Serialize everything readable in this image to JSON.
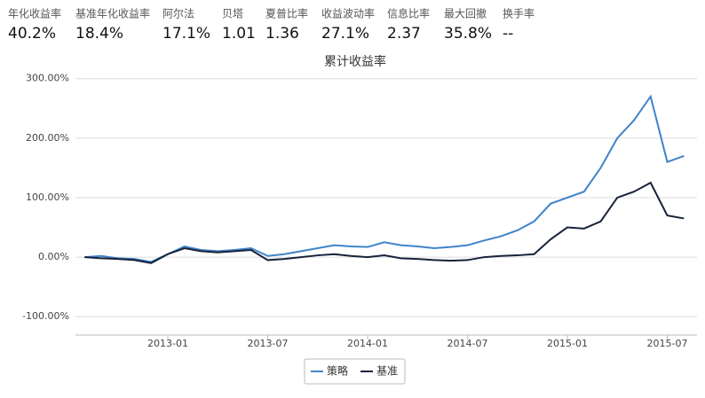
{
  "stats": [
    {
      "label": "年化收益率",
      "value": "40.2%"
    },
    {
      "label": "基准年化收益率",
      "value": "18.4%"
    },
    {
      "label": "阿尔法",
      "value": "17.1%"
    },
    {
      "label": "贝塔",
      "value": "1.01"
    },
    {
      "label": "夏普比率",
      "value": "1.36"
    },
    {
      "label": "收益波动率",
      "value": "27.1%"
    },
    {
      "label": "信息比率",
      "value": "2.37"
    },
    {
      "label": "最大回撤",
      "value": "35.8%"
    },
    {
      "label": "换手率",
      "value": "--"
    }
  ],
  "chart_data": {
    "type": "line",
    "title": "累计收益率",
    "x": [
      "2012-08",
      "2012-09",
      "2012-10",
      "2012-11",
      "2012-12",
      "2013-01",
      "2013-02",
      "2013-03",
      "2013-04",
      "2013-05",
      "2013-06",
      "2013-07",
      "2013-08",
      "2013-09",
      "2013-10",
      "2013-11",
      "2013-12",
      "2014-01",
      "2014-02",
      "2014-03",
      "2014-04",
      "2014-05",
      "2014-06",
      "2014-07",
      "2014-08",
      "2014-09",
      "2014-10",
      "2014-11",
      "2014-12",
      "2015-01",
      "2015-02",
      "2015-03",
      "2015-04",
      "2015-05",
      "2015-06",
      "2015-07",
      "2015-08"
    ],
    "series": [
      {
        "name": "策略",
        "color": "#3f83c9",
        "values": [
          0,
          2,
          -2,
          -3,
          -8,
          5,
          18,
          12,
          10,
          12,
          15,
          2,
          5,
          10,
          15,
          20,
          18,
          17,
          25,
          20,
          18,
          15,
          17,
          20,
          28,
          35,
          45,
          60,
          90,
          100,
          110,
          150,
          200,
          230,
          270,
          160,
          170
        ]
      },
      {
        "name": "基准",
        "color": "#17223a",
        "values": [
          0,
          -2,
          -3,
          -5,
          -10,
          5,
          15,
          10,
          8,
          10,
          12,
          -5,
          -3,
          0,
          3,
          5,
          2,
          0,
          3,
          -2,
          -3,
          -5,
          -6,
          -5,
          0,
          2,
          3,
          5,
          30,
          50,
          48,
          60,
          100,
          110,
          125,
          70,
          65
        ]
      }
    ],
    "ylim": [
      -131,
      310
    ],
    "yticks": [
      {
        "value": -100,
        "label": "-100.00%"
      },
      {
        "value": 0,
        "label": "0.00%"
      },
      {
        "value": 100,
        "label": "100.00%"
      },
      {
        "value": 200,
        "label": "200.00%"
      },
      {
        "value": 300,
        "label": "300.00%"
      }
    ],
    "xticks": [
      "2013-01",
      "2013-07",
      "2014-01",
      "2014-07",
      "2015-01",
      "2015-07"
    ],
    "grid": true
  }
}
